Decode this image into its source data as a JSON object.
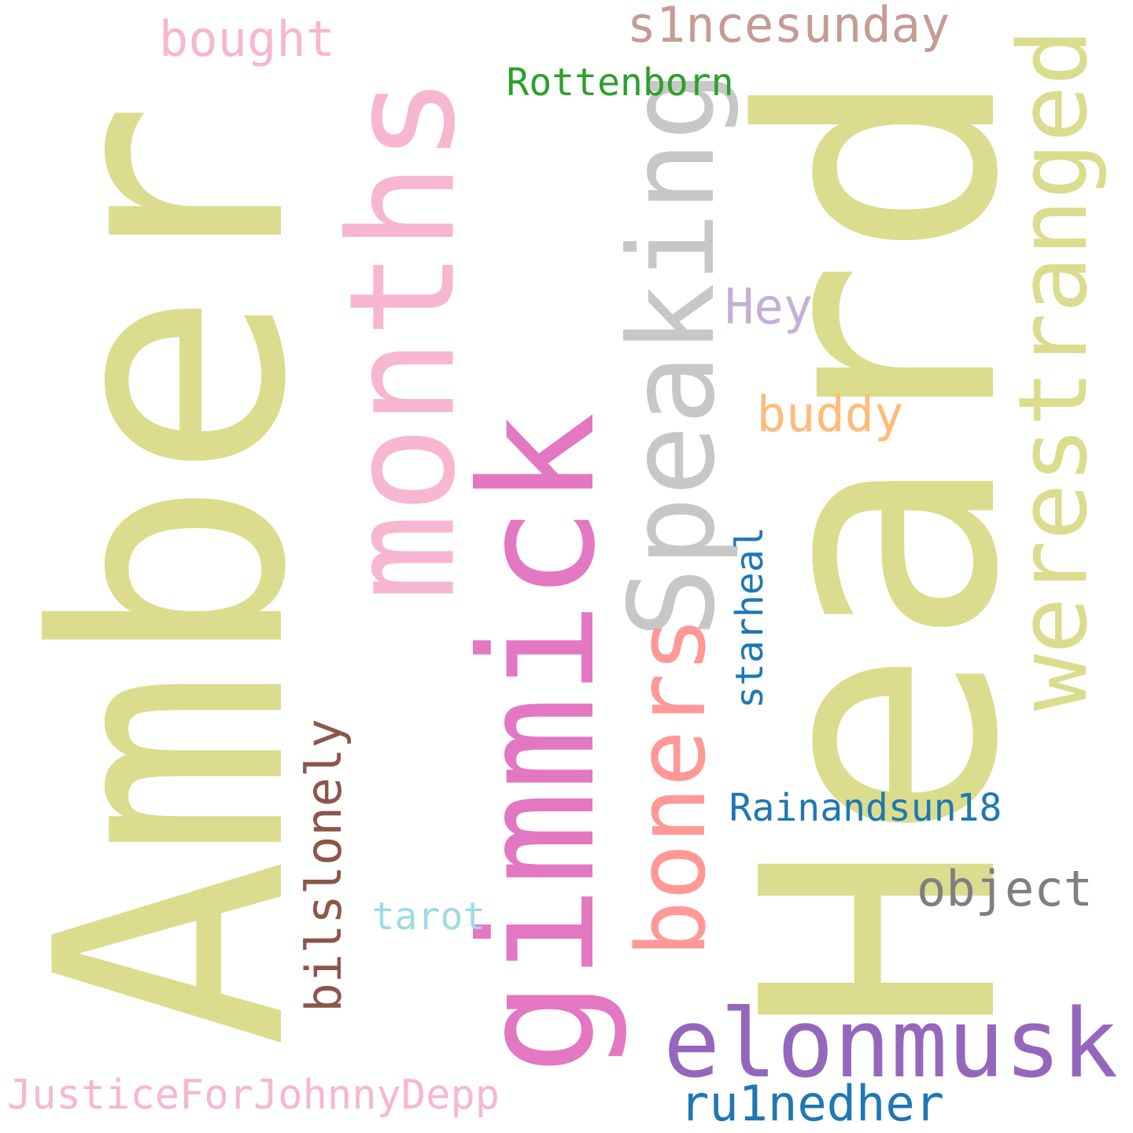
{
  "words": [
    {
      "text": "Amber",
      "color": "#dbdc8d",
      "rotated": true
    },
    {
      "text": "Heard",
      "color": "#dbdc8d",
      "rotated": true
    },
    {
      "text": "months",
      "color": "#f7b6d2",
      "rotated": true
    },
    {
      "text": "gimmick",
      "color": "#e377c2",
      "rotated": true
    },
    {
      "text": "Speaking",
      "color": "#c7c7c7",
      "rotated": true
    },
    {
      "text": "werestranged",
      "color": "#dbdc8d",
      "rotated": true
    },
    {
      "text": "boners",
      "color": "#ff9896",
      "rotated": true
    },
    {
      "text": "starheal",
      "color": "#1f77b4",
      "rotated": true
    },
    {
      "text": "bilslonely",
      "color": "#8c564b",
      "rotated": true
    },
    {
      "text": "bought",
      "color": "#f7b6d2",
      "rotated": false
    },
    {
      "text": "s1ncesunday",
      "color": "#c49c94",
      "rotated": false
    },
    {
      "text": "Rottenborn",
      "color": "#2ca02c",
      "rotated": false
    },
    {
      "text": "Hey",
      "color": "#c5b0d5",
      "rotated": false
    },
    {
      "text": "buddy",
      "color": "#ffbb78",
      "rotated": false
    },
    {
      "text": "Rainandsun18",
      "color": "#1f77b4",
      "rotated": false
    },
    {
      "text": "object",
      "color": "#7f7f7f",
      "rotated": false
    },
    {
      "text": "tarot",
      "color": "#9edae5",
      "rotated": false
    },
    {
      "text": "elonmusk",
      "color": "#9467bd",
      "rotated": false
    },
    {
      "text": "ru1nedher",
      "color": "#1f77b4",
      "rotated": false
    },
    {
      "text": "JusticeForJohnnyDepp",
      "color": "#f7b6d2",
      "rotated": false
    }
  ]
}
